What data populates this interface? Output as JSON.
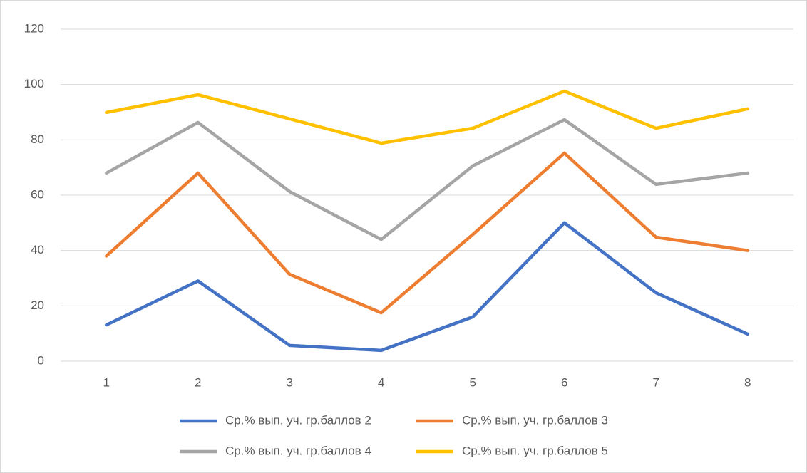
{
  "chart_data": {
    "type": "line",
    "categories": [
      "1",
      "2",
      "3",
      "4",
      "5",
      "6",
      "7",
      "8"
    ],
    "series": [
      {
        "name": "Ср.% вып. уч. гр.баллов 2",
        "color": "#4472c4",
        "values": [
          13.1,
          29,
          5.7,
          3.9,
          16,
          50,
          24.7,
          9.8
        ]
      },
      {
        "name": "Ср.% вып. уч. гр.баллов 3",
        "color": "#ed7d31",
        "values": [
          38,
          68,
          31.4,
          17.5,
          45.8,
          75.2,
          44.8,
          40
        ]
      },
      {
        "name": "Ср.% вып. уч. гр.баллов 4",
        "color": "#a5a5a5",
        "values": [
          68,
          86.3,
          61.3,
          44,
          70.6,
          87.3,
          63.9,
          68
        ]
      },
      {
        "name": "Ср.% вып. уч. гр.баллов 5",
        "color": "#ffc000",
        "values": [
          89.9,
          96.3,
          87.6,
          78.8,
          84.2,
          97.6,
          84.2,
          91.2
        ]
      }
    ],
    "ylim": [
      0,
      120
    ],
    "yticks": [
      0,
      20,
      40,
      60,
      80,
      100,
      120
    ],
    "grid": true,
    "legend": "bottom"
  }
}
